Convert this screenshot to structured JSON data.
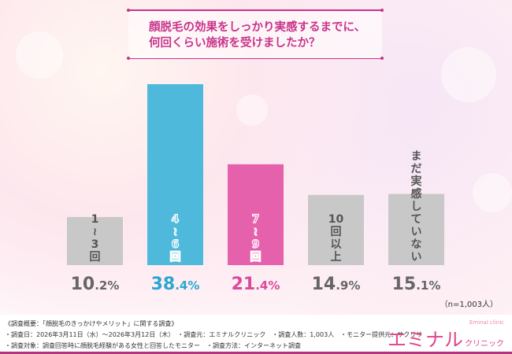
{
  "title": "顔脱毛の効果をしっかり実感するまでに、\n何回くらい施術を受けましたか？",
  "sample_note": "（n=1,003人）",
  "footer": {
    "line1": "《調査概要：「顔脱毛のきっかけやメリット」に関する調査》",
    "line2": "・調査日：2026年3月11日（水）～2026年3月12日（木）　・調査元：エミナルクリニック　・調査人数：1,003人　・モニター提供元：サクリサ",
    "line3": "・調査対象：調査回答時に顔脱毛経験がある女性と回答したモニター　・調査方法：インターネット調査"
  },
  "logo": {
    "main": "エミナル",
    "sub": "クリニック",
    "small": "Eminal clinic"
  },
  "chart_data": {
    "type": "bar",
    "categories": [
      "1～3回",
      "4～6回",
      "7～9回",
      "10回以上",
      "まだ実感していない"
    ],
    "values": [
      10.2,
      38.4,
      21.4,
      14.9,
      15.1
    ],
    "value_labels": [
      "10.2%",
      "38.4%",
      "21.4%",
      "14.9%",
      "15.1%"
    ],
    "colors": [
      "#c8c8c8",
      "#4fb9dc",
      "#e661ac",
      "#c8c8c8",
      "#c8c8c8"
    ],
    "label_colors": [
      "#666666",
      "#2aa6cf",
      "#d94a9c",
      "#666666",
      "#666666"
    ],
    "ylim": [
      0,
      40
    ],
    "grid": false
  }
}
